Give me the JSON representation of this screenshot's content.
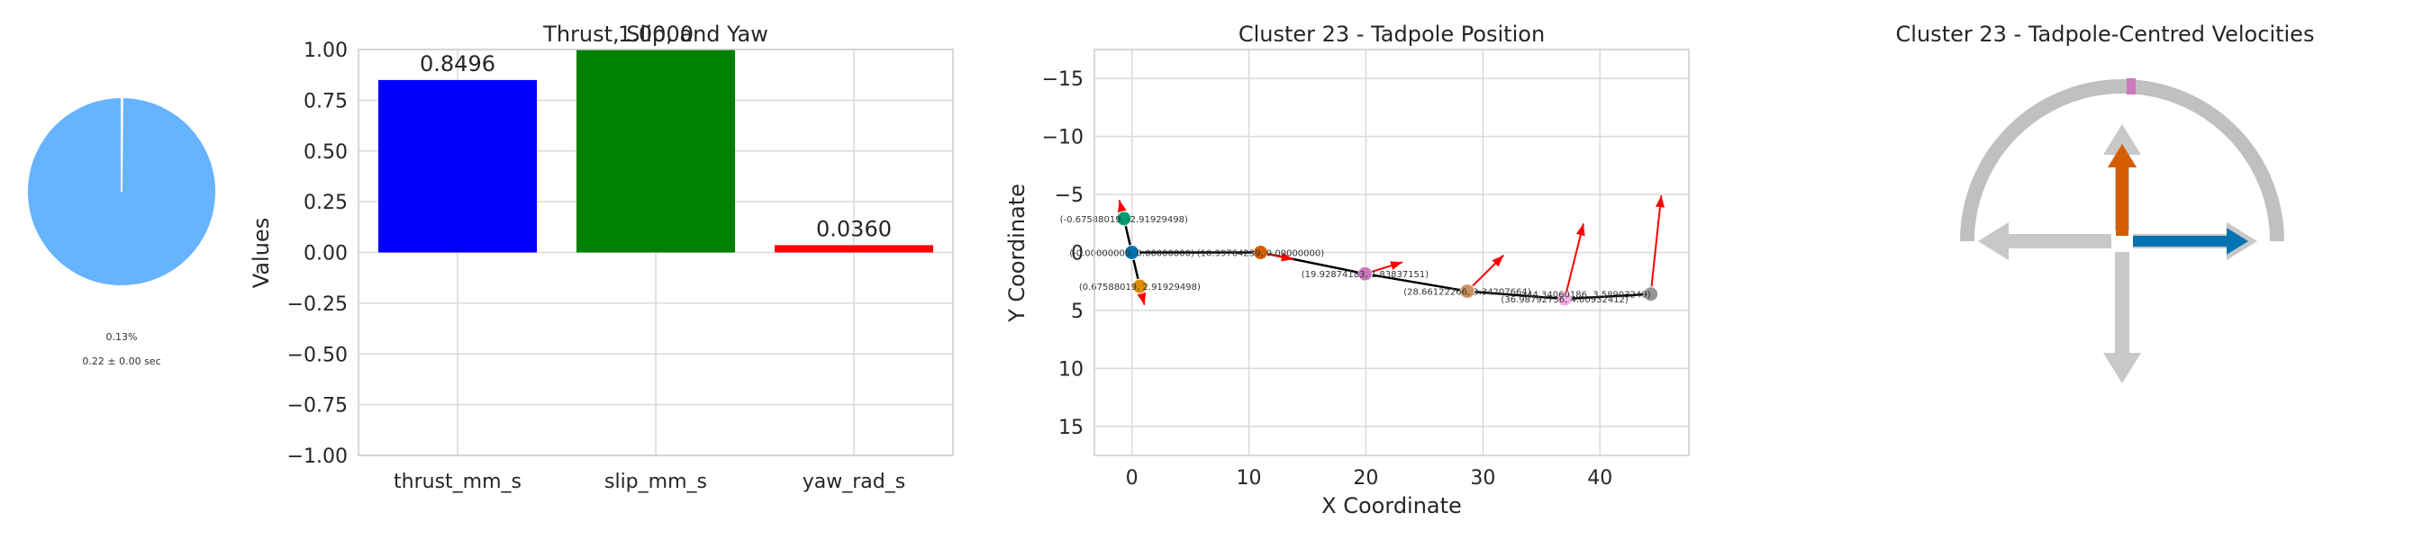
{
  "chart_data": [
    {
      "type": "pie",
      "slices": [
        {
          "label": "0.13%",
          "value": 0.13,
          "color": "#ffffff"
        },
        {
          "label": "",
          "value": 99.87,
          "color": "#66b3ff"
        }
      ],
      "percent_label": "0.13%",
      "duration_label": "0.22 ± 0.00 sec"
    },
    {
      "type": "bar",
      "title": "Thrust, Slip, and Yaw",
      "title_overlap": "1.0000",
      "ylabel": "Values",
      "ylim": [
        -1.0,
        1.0
      ],
      "yticks": [
        "−1.00",
        "−0.75",
        "−0.50",
        "−0.25",
        "0.00",
        "0.25",
        "0.50",
        "0.75",
        "1.00"
      ],
      "categories": [
        "thrust_mm_s",
        "slip_mm_s",
        "yaw_rad_s"
      ],
      "values": [
        0.8496,
        1.0,
        0.036
      ],
      "value_labels": [
        "0.8496",
        "1.0000",
        "0.0360"
      ],
      "colors": [
        "#0000ff",
        "#008000",
        "#ff0000"
      ],
      "grid": true
    },
    {
      "type": "scatter",
      "title": "Cluster 23 - Tadpole Position",
      "xlabel": "X Coordinate",
      "ylabel": "Y Coordinate",
      "xlim": [
        -3.2,
        47.6
      ],
      "ylim": [
        17.5,
        -17.5
      ],
      "xticks": [
        "0",
        "10",
        "20",
        "30",
        "40"
      ],
      "yticks": [
        "−15",
        "−10",
        "−5",
        "0",
        "5",
        "10",
        "15"
      ],
      "points": [
        {
          "x": -0.6758,
          "y": -2.9193,
          "color": "#029e73",
          "label": "(-0.67588019, -2.91929498)"
        },
        {
          "x": 0.0,
          "y": 0.0,
          "color": "#0173b2",
          "label": "(-0.00000000, 0.00000000)"
        },
        {
          "x": 0.6759,
          "y": 2.9193,
          "color": "#de8f05",
          "label": "(0.67588019, 2.91929498)"
        },
        {
          "x": 10.9977,
          "y": 0.0,
          "color": "#d55e00",
          "label": "(10.99764239, 0.00000000)"
        },
        {
          "x": 19.9287,
          "y": 1.8384,
          "color": "#cc78bc",
          "label": "(19.92874183, 1.83837151)"
        },
        {
          "x": 28.6612,
          "y": 3.3421,
          "color": "#ca9161",
          "label": "(28.66122266, 3.34207664)"
        },
        {
          "x": 36.9879,
          "y": 4.0093,
          "color": "#fbafe4",
          "label": "(36.98792736, 4.00932412)"
        },
        {
          "x": 44.3406,
          "y": 3.589,
          "color": "#949494",
          "label": "(44.34060186, 3.58903249)"
        }
      ],
      "arrows": [
        {
          "x": -0.6758,
          "y": -2.9193,
          "dx": -0.4,
          "dy": -1.6
        },
        {
          "x": 0.6759,
          "y": 2.9193,
          "dx": 0.4,
          "dy": 1.6
        },
        {
          "x": 10.9977,
          "y": 0.0,
          "dx": 2.8,
          "dy": 0.6
        },
        {
          "x": 19.9287,
          "y": 1.8384,
          "dx": 3.2,
          "dy": -1.0
        },
        {
          "x": 28.6612,
          "y": 3.3421,
          "dx": 3.1,
          "dy": -3.1
        },
        {
          "x": 36.9879,
          "y": 4.0093,
          "dx": 1.6,
          "dy": -6.5
        },
        {
          "x": 44.3406,
          "y": 3.589,
          "dx": 0.9,
          "dy": -8.5
        }
      ],
      "grid": true
    },
    {
      "type": "diagram",
      "title": "Cluster 23 - Tadpole-Centred Velocities",
      "arc_color": "#c0c0c0",
      "marker_color": "#cc78bc",
      "thrust_arrow_color": "#d55e00",
      "slip_arrow_color": "#0173b2",
      "reference_arrow_color": "#c8c8c8",
      "thrust_value": 0.8496,
      "slip_value": 1.0
    }
  ]
}
